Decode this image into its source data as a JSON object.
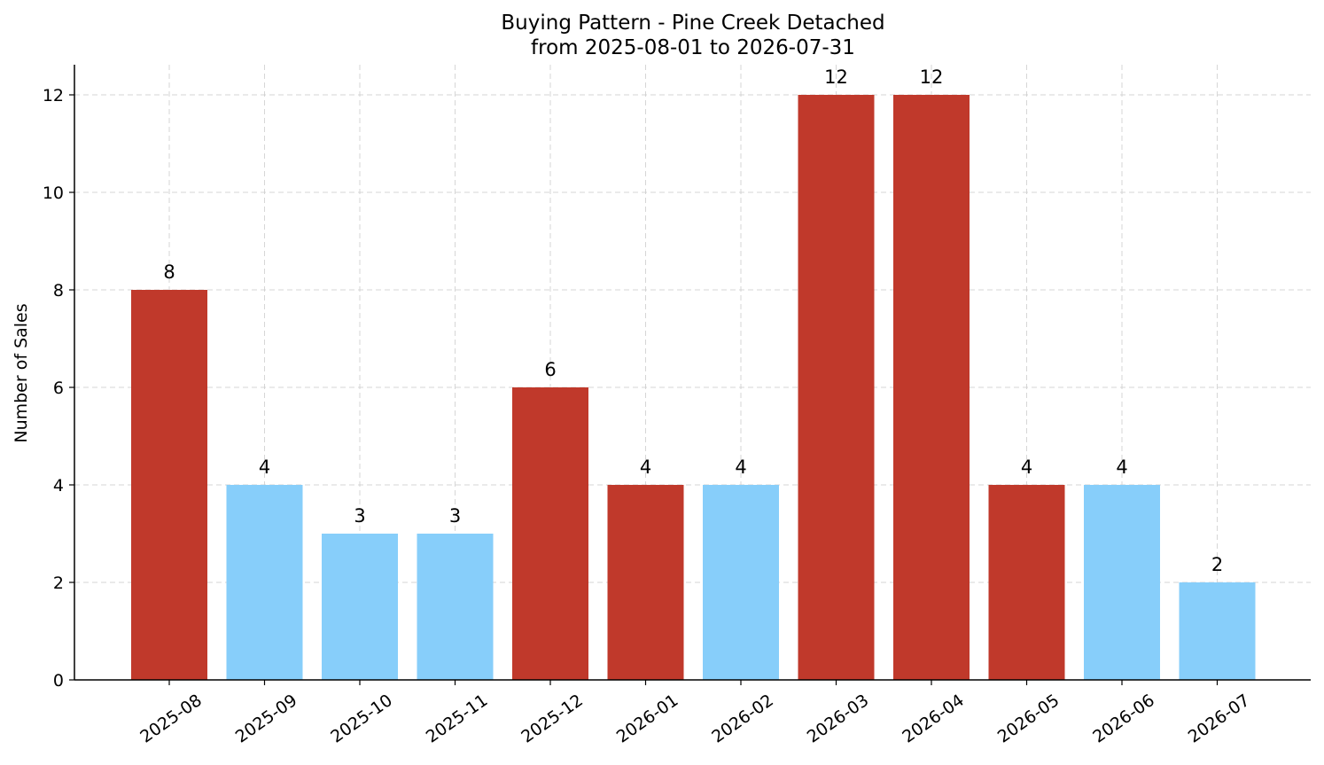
{
  "chart_data": {
    "type": "bar",
    "title": "Buying Pattern - Pine Creek Detached",
    "subtitle": "from 2025-08-01 to 2026-07-31",
    "xlabel": "",
    "ylabel": "Number of Sales",
    "categories": [
      "2025-08",
      "2025-09",
      "2025-10",
      "2025-11",
      "2025-12",
      "2026-01",
      "2026-02",
      "2026-03",
      "2026-04",
      "2026-05",
      "2026-06",
      "2026-07"
    ],
    "values": [
      8,
      4,
      3,
      3,
      6,
      4,
      4,
      12,
      12,
      4,
      4,
      2
    ],
    "bar_colors": [
      "#c0392b",
      "#87cefa",
      "#87cefa",
      "#87cefa",
      "#c0392b",
      "#c0392b",
      "#87cefa",
      "#c0392b",
      "#c0392b",
      "#c0392b",
      "#87cefa",
      "#87cefa"
    ],
    "ylim": [
      0,
      12.6
    ],
    "yticks": [
      0,
      2,
      4,
      6,
      8,
      10,
      12
    ],
    "grid": true,
    "legend": "none",
    "data_labels": true
  },
  "colors": {
    "high": "#c0392b",
    "low": "#87cefa",
    "grid": "#cccccc",
    "axis": "#000000"
  }
}
